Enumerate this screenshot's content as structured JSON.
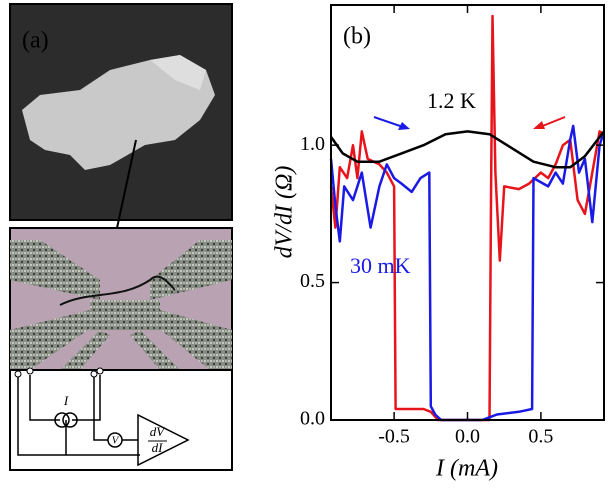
{
  "panel_a": {
    "label": "(a)",
    "circuit_labels": [
      "I",
      "V",
      "dV",
      "dI"
    ]
  },
  "chart_data": {
    "type": "line",
    "panel_label": "(b)",
    "x_label": "I (mA)",
    "y_label": "dV/dI (Ω)",
    "xlim": [
      -0.93,
      0.93
    ],
    "ylim": [
      0,
      1.51
    ],
    "xticks": [
      -0.5,
      {
        "value": 0,
        "label": "0.0"
      },
      0.5
    ],
    "yticks": [
      {
        "value": 0,
        "label": "0.0"
      },
      0.5,
      {
        "value": 1,
        "label": "1.0"
      }
    ],
    "series": [
      {
        "color": "#e8141c",
        "x": [
          -0.93,
          -0.9,
          -0.87,
          -0.82,
          -0.78,
          -0.75,
          -0.72,
          -0.68,
          -0.6,
          -0.55,
          -0.5,
          -0.49,
          -0.3,
          -0.25,
          -0.2,
          0.0,
          0.15,
          0.16,
          0.17,
          0.19,
          0.22,
          0.25,
          0.35,
          0.42,
          0.5,
          0.55,
          0.6,
          0.65,
          0.7,
          0.75,
          0.8,
          0.85,
          0.9,
          0.93
        ],
        "values": [
          0.85,
          0.7,
          0.92,
          0.88,
          1.0,
          0.88,
          1.05,
          0.95,
          0.93,
          0.9,
          0.85,
          0.04,
          0.04,
          0.03,
          0.0,
          0.0,
          0.0,
          0.8,
          1.47,
          0.9,
          0.58,
          0.85,
          0.84,
          0.86,
          0.9,
          0.88,
          0.93,
          1.0,
          1.02,
          0.8,
          0.75,
          0.9,
          1.05,
          1.04
        ]
      },
      {
        "name": "30 mK",
        "color": "#1a1ae6",
        "x": [
          -0.93,
          -0.9,
          -0.87,
          -0.84,
          -0.78,
          -0.72,
          -0.66,
          -0.6,
          -0.55,
          -0.5,
          -0.45,
          -0.38,
          -0.32,
          -0.26,
          -0.25,
          -0.22,
          -0.18,
          0.1,
          0.15,
          0.2,
          0.35,
          0.44,
          0.45,
          0.55,
          0.6,
          0.65,
          0.7,
          0.72,
          0.76,
          0.8,
          0.85,
          0.9,
          0.93
        ],
        "values": [
          0.95,
          0.78,
          0.65,
          0.85,
          0.8,
          0.9,
          0.7,
          0.85,
          0.93,
          0.88,
          0.86,
          0.83,
          0.88,
          0.9,
          0.05,
          0.02,
          0.0,
          0.0,
          0.01,
          0.02,
          0.03,
          0.04,
          0.88,
          0.85,
          0.9,
          0.86,
          1.02,
          1.07,
          0.9,
          0.95,
          0.72,
          1.0,
          1.05
        ]
      },
      {
        "name": "1.2 K",
        "color": "#000000",
        "x": [
          -0.93,
          -0.85,
          -0.75,
          -0.6,
          -0.45,
          -0.3,
          -0.15,
          0.0,
          0.15,
          0.3,
          0.45,
          0.6,
          0.7,
          0.8,
          0.93
        ],
        "values": [
          1.03,
          0.97,
          0.94,
          0.94,
          0.97,
          1.0,
          1.04,
          1.05,
          1.04,
          0.99,
          0.94,
          0.92,
          0.92,
          0.96,
          1.05
        ]
      }
    ]
  }
}
